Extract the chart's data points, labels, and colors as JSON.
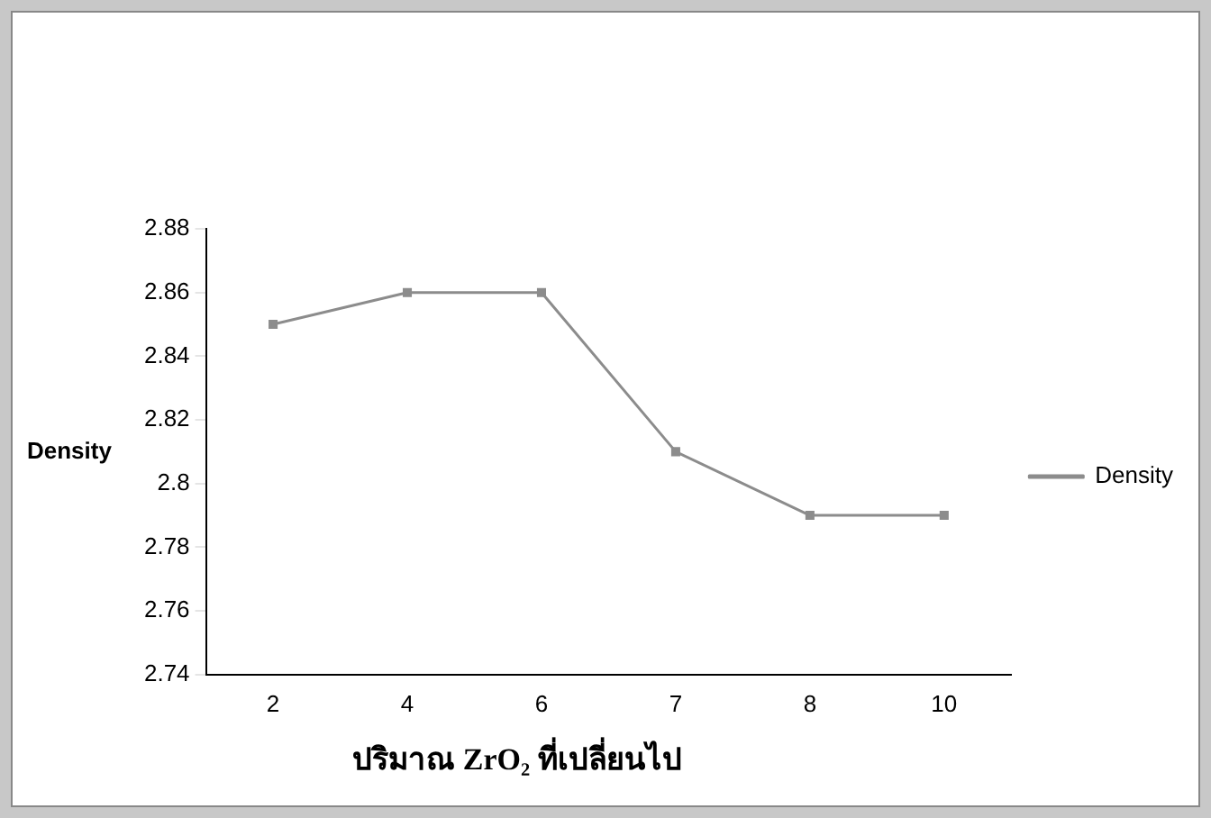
{
  "chart_data": {
    "type": "line",
    "xlabel": "ปริมาณ ZrO₂ ที่เปลี่ยนไป",
    "ylabel": "Density",
    "categories": [
      "2",
      "4",
      "6",
      "7",
      "8",
      "10"
    ],
    "series": [
      {
        "name": "Density",
        "color": "#8c8c8c",
        "values": [
          2.85,
          2.86,
          2.86,
          2.81,
          2.79,
          2.79
        ]
      }
    ],
    "ylim": [
      2.74,
      2.88
    ],
    "yticks": [
      2.74,
      2.76,
      2.78,
      2.8,
      2.82,
      2.84,
      2.86,
      2.88
    ],
    "grid": false,
    "legend": "right",
    "marker": "square",
    "line_style": "solid"
  }
}
